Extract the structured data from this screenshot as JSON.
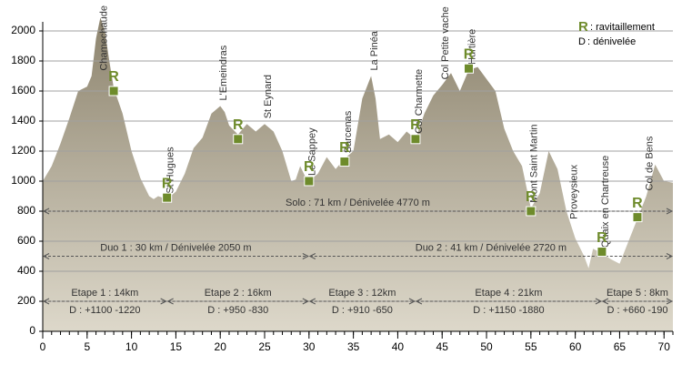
{
  "chart_data": {
    "type": "area",
    "x": [
      0,
      1,
      2,
      3,
      4,
      5,
      5.5,
      6,
      6.5,
      7,
      7.5,
      8,
      9,
      10,
      11,
      12,
      12.5,
      13,
      14,
      15,
      16,
      17,
      18,
      19,
      20,
      20.5,
      21,
      22,
      23,
      24,
      25,
      26,
      27,
      28,
      28.5,
      29,
      29.5,
      30,
      31,
      32,
      33,
      34,
      35,
      36,
      37,
      37.5,
      38,
      39,
      40,
      41,
      42,
      43,
      44,
      45,
      46,
      47,
      48,
      49,
      50,
      51,
      52,
      53,
      54,
      55,
      56,
      57,
      58,
      59,
      60,
      61,
      61.5,
      62,
      63,
      64,
      65,
      66,
      67,
      68,
      69,
      70,
      71
    ],
    "values": [
      1000,
      1100,
      1250,
      1420,
      1600,
      1630,
      1700,
      1950,
      2090,
      2000,
      1800,
      1620,
      1450,
      1200,
      1020,
      900,
      880,
      900,
      880,
      930,
      1050,
      1220,
      1290,
      1450,
      1500,
      1460,
      1370,
      1310,
      1380,
      1330,
      1380,
      1330,
      1200,
      1000,
      1010,
      1100,
      1040,
      1000,
      1050,
      1160,
      1080,
      1150,
      1200,
      1550,
      1700,
      1550,
      1280,
      1310,
      1260,
      1330,
      1280,
      1450,
      1570,
      1640,
      1720,
      1600,
      1740,
      1760,
      1680,
      1600,
      1350,
      1200,
      1100,
      820,
      920,
      1200,
      1080,
      800,
      620,
      500,
      420,
      550,
      520,
      480,
      450,
      600,
      750,
      900,
      1110,
      1000,
      990
    ],
    "color_top": "#8d846e",
    "color_bottom": "#ddd8ca",
    "xlim": [
      0,
      71
    ],
    "ylim": [
      0,
      2000
    ],
    "xticks": [
      0,
      5,
      10,
      15,
      20,
      25,
      30,
      35,
      40,
      45,
      50,
      55,
      60,
      65,
      70
    ],
    "yticks": [
      0,
      200,
      400,
      600,
      800,
      1000,
      1200,
      1400,
      1600,
      1800,
      2000
    ],
    "grid": true,
    "places": [
      {
        "name": "Chamechaude",
        "x": 6.5
      },
      {
        "name": "St Hugues",
        "x": 14
      },
      {
        "name": "L'Emeindras",
        "x": 20
      },
      {
        "name": "St Eynard",
        "x": 25
      },
      {
        "name": "Le Sappey",
        "x": 30
      },
      {
        "name": "Sarcenas",
        "x": 34
      },
      {
        "name": "La Pinéa",
        "x": 37
      },
      {
        "name": "Col Charmette",
        "x": 42
      },
      {
        "name": "Col Petite vache",
        "x": 45
      },
      {
        "name": "Hurtière",
        "x": 48
      },
      {
        "name": "Mont Saint Martin",
        "x": 55
      },
      {
        "name": "Proveysieux",
        "x": 59.5
      },
      {
        "name": "Quaix en Chartreuse",
        "x": 63
      },
      {
        "name": "Col de Bens",
        "x": 68
      }
    ],
    "supply_points": [
      {
        "x": 8,
        "y": 1600,
        "label": "R"
      },
      {
        "x": 14,
        "y": 890,
        "label": "R"
      },
      {
        "x": 22,
        "y": 1280,
        "label": "R"
      },
      {
        "x": 30,
        "y": 1000,
        "label": "R"
      },
      {
        "x": 34,
        "y": 1130,
        "label": "R"
      },
      {
        "x": 42,
        "y": 1280,
        "label": "R"
      },
      {
        "x": 48,
        "y": 1750,
        "label": "R"
      },
      {
        "x": 55,
        "y": 800,
        "label": "R"
      },
      {
        "x": 63,
        "y": 530,
        "label": "R"
      },
      {
        "x": 67,
        "y": 760,
        "label": "R"
      }
    ],
    "marker_color": "#6e8b2b",
    "ranges": [
      {
        "start": 0,
        "end": 71,
        "level": 800,
        "lines": [
          "Solo : 71 km / Dénivelée 4770 m"
        ]
      },
      {
        "start": 0,
        "end": 30,
        "level": 500,
        "lines": [
          "Duo 1 : 30 km / Dénivelée 2050 m"
        ]
      },
      {
        "start": 30,
        "end": 71,
        "level": 500,
        "lines": [
          "Duo 2 : 41 km / Dénivelée 2720 m"
        ]
      },
      {
        "start": 0,
        "end": 14,
        "level": 200,
        "lines": [
          "Etape 1 : 14km",
          "D : +1100 -1220"
        ]
      },
      {
        "start": 14,
        "end": 30,
        "level": 200,
        "lines": [
          "Etape 2 : 16km",
          "D : +950 -830"
        ]
      },
      {
        "start": 30,
        "end": 42,
        "level": 200,
        "lines": [
          "Etape 3 : 12km",
          "D : +910 -650"
        ]
      },
      {
        "start": 42,
        "end": 63,
        "level": 200,
        "lines": [
          "Etape 4 : 21km",
          "D : +1150 -1880"
        ]
      },
      {
        "start": 63,
        "end": 71,
        "level": 200,
        "lines": [
          "Etape 5 : 8km",
          "D : +660 -190"
        ]
      }
    ],
    "legend": [
      {
        "symbol": "R",
        "text": ": ravitaillement"
      },
      {
        "symbol": "D",
        "text": ": dénivelée"
      }
    ]
  }
}
